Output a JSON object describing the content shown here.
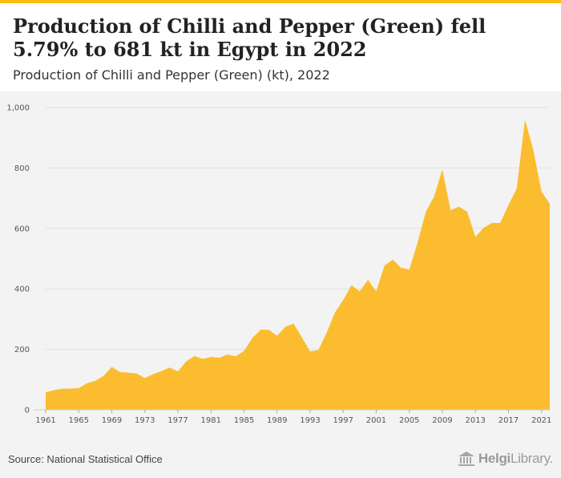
{
  "header": {
    "title": "Production of Chilli and Pepper (Green) fell 5.79% to 681 kt in Egypt in 2022",
    "subtitle": "Production of Chilli and Pepper (Green) (kt), 2022"
  },
  "footer": {
    "source": "Source: National Statistical Office",
    "logo_text_bold": "Helgi",
    "logo_text": "Library.",
    "logo_icon": "library-building-icon"
  },
  "colors": {
    "accent": "#fbbb10",
    "area_fill": "#fbbd2f",
    "plot_background": "#f3f3f3",
    "grid": "#e1e1e1"
  },
  "chart_data": {
    "type": "area",
    "title": "",
    "xlabel": "",
    "ylabel": "",
    "xlim": [
      1961,
      2022
    ],
    "ylim": [
      0,
      1000
    ],
    "grid": true,
    "y_ticks": [
      0,
      200,
      400,
      600,
      800,
      1000
    ],
    "y_tick_labels": [
      "0",
      "200",
      "400",
      "600",
      "800",
      "1,000"
    ],
    "x_ticks": [
      1961,
      1965,
      1969,
      1973,
      1977,
      1981,
      1985,
      1989,
      1993,
      1997,
      2001,
      2005,
      2009,
      2013,
      2017,
      2021
    ],
    "x_tick_labels": [
      "1961",
      "1965",
      "1969",
      "1973",
      "1977",
      "1981",
      "1985",
      "1989",
      "1993",
      "1997",
      "2001",
      "2005",
      "2009",
      "2013",
      "2017",
      "2021"
    ],
    "x": [
      1961,
      1962,
      1963,
      1964,
      1965,
      1966,
      1967,
      1968,
      1969,
      1970,
      1971,
      1972,
      1973,
      1974,
      1975,
      1976,
      1977,
      1978,
      1979,
      1980,
      1981,
      1982,
      1983,
      1984,
      1985,
      1986,
      1987,
      1988,
      1989,
      1990,
      1991,
      1992,
      1993,
      1994,
      1995,
      1996,
      1997,
      1998,
      1999,
      2000,
      2001,
      2002,
      2003,
      2004,
      2005,
      2006,
      2007,
      2008,
      2009,
      2010,
      2011,
      2012,
      2013,
      2014,
      2015,
      2016,
      2017,
      2018,
      2019,
      2020,
      2021,
      2022
    ],
    "series": [
      {
        "values": [
          58,
          65,
          70,
          70,
          72,
          88,
          96,
          112,
          142,
          125,
          123,
          120,
          105,
          118,
          128,
          140,
          127,
          160,
          178,
          168,
          175,
          172,
          183,
          177,
          195,
          237,
          265,
          265,
          245,
          275,
          285,
          240,
          193,
          198,
          255,
          322,
          363,
          412,
          392,
          430,
          392,
          477,
          497,
          470,
          464,
          553,
          655,
          705,
          795,
          660,
          672,
          655,
          572,
          602,
          618,
          618,
          677,
          732,
          960,
          860,
          722,
          681
        ]
      }
    ]
  }
}
